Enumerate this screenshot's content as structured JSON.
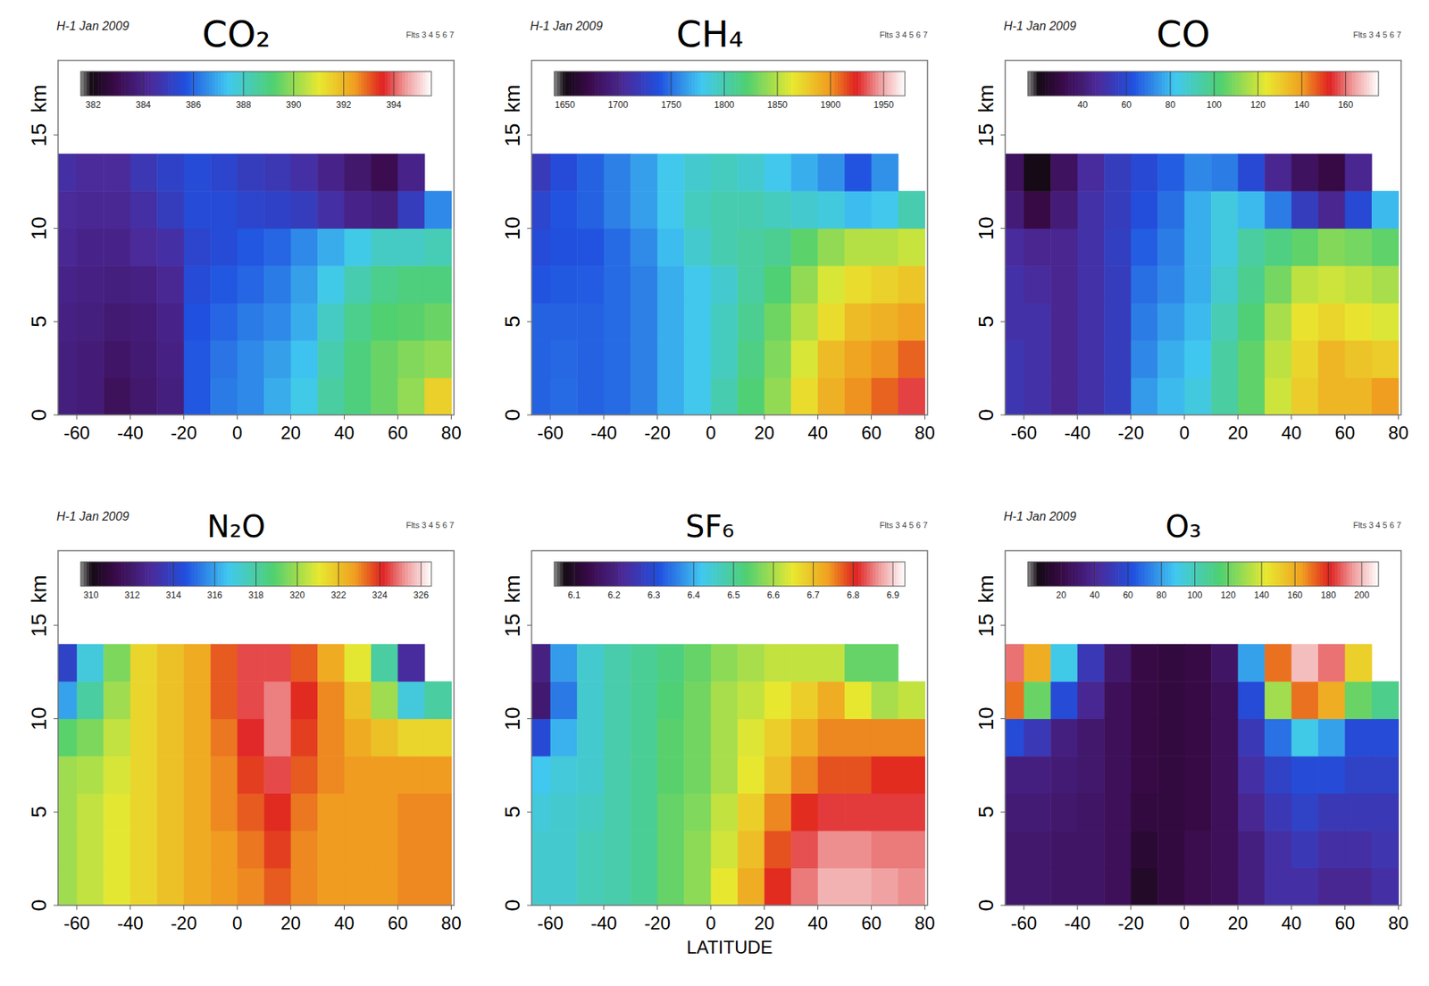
{
  "chart_data": [
    {
      "type": "heatmap",
      "title": "CO₂",
      "annotations": [
        "H-1 Jan 2009",
        "Flts 3 4 5 6 7"
      ],
      "ylabel": "km",
      "x": [
        -65,
        -55,
        -45,
        -35,
        -25,
        -15,
        -5,
        5,
        15,
        25,
        35,
        45,
        55,
        65,
        75
      ],
      "y": [
        1,
        3,
        5,
        7,
        9,
        11,
        13
      ],
      "xlim": [
        -67,
        81
      ],
      "xticks": [
        -60,
        -40,
        -20,
        0,
        20,
        40,
        60,
        80
      ],
      "ylim": [
        0,
        19
      ],
      "yticks": [
        0,
        5,
        10,
        15
      ],
      "colorbar": {
        "range": [
          381.5,
          395.5
        ],
        "ticks": [
          382,
          384,
          386,
          388,
          390,
          392,
          394
        ]
      },
      "cells": [
        [
          383.8,
          383.7,
          383.2,
          383.5,
          383.8,
          385.8,
          386.3,
          386.5,
          387.0,
          387.5,
          388.5,
          389.0,
          389.5,
          390.0,
          391.5
        ],
        [
          383.8,
          383.7,
          383.4,
          383.6,
          383.9,
          385.8,
          386.2,
          386.5,
          386.8,
          387.3,
          388.3,
          389.0,
          389.5,
          389.8,
          390.0
        ],
        [
          383.9,
          383.8,
          383.6,
          383.7,
          384.0,
          385.7,
          386.0,
          386.3,
          386.5,
          387.0,
          388.0,
          388.8,
          389.2,
          389.3,
          389.5
        ],
        [
          384.0,
          383.9,
          383.8,
          383.9,
          384.2,
          385.5,
          385.8,
          386.0,
          386.3,
          386.8,
          387.5,
          388.3,
          388.8,
          389.0,
          389.0
        ],
        [
          384.2,
          384.0,
          384.0,
          384.3,
          384.5,
          385.3,
          385.5,
          385.8,
          386.0,
          386.5,
          387.0,
          387.5,
          388.0,
          388.0,
          388.2
        ],
        [
          384.3,
          384.2,
          384.2,
          384.5,
          385.0,
          385.5,
          385.5,
          385.3,
          385.2,
          385.0,
          384.5,
          384.0,
          383.8,
          385.0,
          386.5
        ],
        [
          384.5,
          384.3,
          384.3,
          384.8,
          385.2,
          385.5,
          385.3,
          385.0,
          384.8,
          384.5,
          384.0,
          383.5,
          383.0,
          384.0,
          null
        ]
      ]
    },
    {
      "type": "heatmap",
      "title": "CH₄",
      "annotations": [
        "H-1 Jan 2009",
        "Flts 3 4 5 6 7"
      ],
      "ylabel": "km",
      "x": [
        -65,
        -55,
        -45,
        -35,
        -25,
        -15,
        -5,
        5,
        15,
        25,
        35,
        45,
        55,
        65,
        75
      ],
      "y": [
        1,
        3,
        5,
        7,
        9,
        11,
        13
      ],
      "xlim": [
        -67,
        81
      ],
      "xticks": [
        -60,
        -40,
        -20,
        0,
        20,
        40,
        60,
        80
      ],
      "ylim": [
        0,
        19
      ],
      "yticks": [
        0,
        5,
        10,
        15
      ],
      "colorbar": {
        "range": [
          1640,
          1970
        ],
        "ticks": [
          1650,
          1700,
          1750,
          1800,
          1850,
          1900,
          1950
        ]
      },
      "cells": [
        [
          1745,
          1748,
          1745,
          1748,
          1755,
          1770,
          1780,
          1800,
          1820,
          1840,
          1870,
          1890,
          1900,
          1910,
          1930
        ],
        [
          1745,
          1747,
          1745,
          1748,
          1755,
          1770,
          1780,
          1795,
          1815,
          1835,
          1860,
          1885,
          1895,
          1900,
          1910
        ],
        [
          1745,
          1745,
          1745,
          1748,
          1755,
          1770,
          1780,
          1795,
          1810,
          1830,
          1850,
          1870,
          1885,
          1890,
          1895
        ],
        [
          1740,
          1742,
          1743,
          1748,
          1755,
          1770,
          1780,
          1790,
          1805,
          1820,
          1840,
          1860,
          1870,
          1875,
          1880
        ],
        [
          1735,
          1738,
          1740,
          1748,
          1758,
          1775,
          1790,
          1800,
          1805,
          1810,
          1825,
          1840,
          1850,
          1850,
          1855
        ],
        [
          1730,
          1740,
          1745,
          1755,
          1765,
          1780,
          1795,
          1800,
          1800,
          1795,
          1790,
          1785,
          1775,
          1780,
          1800
        ],
        [
          1720,
          1735,
          1745,
          1755,
          1765,
          1780,
          1790,
          1795,
          1790,
          1780,
          1770,
          1760,
          1740,
          1760,
          null
        ]
      ]
    },
    {
      "type": "heatmap",
      "title": "CO",
      "annotations": [
        "H-1 Jan 2009",
        "Flts 3 4 5 6 7"
      ],
      "ylabel": "km",
      "x": [
        -65,
        -55,
        -45,
        -35,
        -25,
        -15,
        -5,
        5,
        15,
        25,
        35,
        45,
        55,
        65,
        75
      ],
      "y": [
        1,
        3,
        5,
        7,
        9,
        11,
        13
      ],
      "xlim": [
        -67,
        81
      ],
      "xticks": [
        -60,
        -40,
        -20,
        0,
        20,
        40,
        60,
        80
      ],
      "ylim": [
        0,
        19
      ],
      "yticks": [
        0,
        5,
        10,
        15
      ],
      "colorbar": {
        "range": [
          15,
          175
        ],
        "ticks": [
          40,
          60,
          80,
          100,
          120,
          140,
          160
        ]
      },
      "cells": [
        [
          52,
          50,
          45,
          50,
          55,
          75,
          80,
          85,
          95,
          105,
          120,
          130,
          135,
          135,
          140
        ],
        [
          52,
          50,
          45,
          50,
          55,
          72,
          78,
          82,
          95,
          105,
          118,
          128,
          135,
          132,
          130
        ],
        [
          50,
          50,
          45,
          50,
          55,
          70,
          75,
          80,
          92,
          102,
          115,
          125,
          128,
          125,
          122
        ],
        [
          50,
          48,
          45,
          50,
          55,
          68,
          72,
          78,
          88,
          98,
          108,
          118,
          120,
          118,
          115
        ],
        [
          48,
          45,
          45,
          50,
          56,
          65,
          70,
          78,
          85,
          95,
          100,
          105,
          110,
          108,
          105
        ],
        [
          40,
          30,
          40,
          50,
          55,
          62,
          68,
          78,
          85,
          80,
          70,
          55,
          45,
          60,
          80
        ],
        [
          35,
          20,
          35,
          48,
          55,
          60,
          65,
          72,
          70,
          60,
          45,
          35,
          30,
          45,
          null
        ]
      ]
    },
    {
      "type": "heatmap",
      "title": "N₂O",
      "annotations": [
        "H-1 Jan 2009",
        "Flts 3 4 5 6 7"
      ],
      "ylabel": "km",
      "x": [
        -65,
        -55,
        -45,
        -35,
        -25,
        -15,
        -5,
        5,
        15,
        25,
        35,
        45,
        55,
        65,
        75
      ],
      "y": [
        1,
        3,
        5,
        7,
        9,
        11,
        13
      ],
      "xlim": [
        -67,
        81
      ],
      "xticks": [
        -60,
        -40,
        -20,
        0,
        20,
        40,
        60,
        80
      ],
      "ylim": [
        0,
        19
      ],
      "yticks": [
        0,
        5,
        10,
        15
      ],
      "colorbar": {
        "range": [
          309.5,
          326.5
        ],
        "ticks": [
          310,
          312,
          314,
          316,
          318,
          320,
          322,
          324,
          326
        ]
      },
      "cells": [
        [
          320.0,
          320.5,
          321.0,
          321.5,
          322.0,
          322.5,
          322.8,
          323.0,
          323.5,
          323.0,
          322.8,
          322.8,
          322.8,
          323.0,
          323.0
        ],
        [
          320.0,
          320.5,
          321.0,
          321.5,
          322.0,
          322.5,
          322.8,
          323.2,
          323.8,
          323.0,
          322.8,
          322.8,
          322.8,
          323.0,
          323.0
        ],
        [
          320.0,
          320.5,
          321.0,
          321.5,
          322.0,
          322.5,
          323.0,
          323.5,
          324.0,
          323.2,
          322.8,
          322.8,
          322.8,
          323.0,
          323.0
        ],
        [
          320.0,
          320.2,
          320.8,
          321.5,
          322.0,
          322.5,
          323.0,
          323.8,
          324.5,
          323.5,
          323.0,
          322.8,
          322.8,
          322.8,
          322.8
        ],
        [
          319.0,
          319.5,
          320.5,
          321.5,
          322.0,
          322.5,
          323.2,
          324.2,
          325.0,
          323.8,
          323.0,
          322.5,
          322.0,
          321.5,
          321.5
        ],
        [
          316.0,
          318.0,
          320.0,
          321.5,
          322.0,
          322.5,
          323.5,
          324.5,
          325.0,
          324.0,
          323.0,
          322.0,
          320.0,
          317.0,
          318.0
        ],
        [
          314.0,
          317.0,
          319.5,
          321.5,
          322.0,
          322.5,
          323.5,
          324.5,
          324.5,
          323.5,
          322.5,
          321.0,
          318.0,
          313.0,
          null
        ]
      ]
    },
    {
      "type": "heatmap",
      "title": "SF₆",
      "annotations": [
        "Flts 3 4 5 6 7"
      ],
      "ylabel": "km",
      "xlabel": "LATITUDE",
      "x": [
        -65,
        -55,
        -45,
        -35,
        -25,
        -15,
        -5,
        5,
        15,
        25,
        35,
        45,
        55,
        65,
        75
      ],
      "y": [
        1,
        3,
        5,
        7,
        9,
        11,
        13
      ],
      "xlim": [
        -67,
        81
      ],
      "xticks": [
        -60,
        -40,
        -20,
        0,
        20,
        40,
        60,
        80
      ],
      "ylim": [
        0,
        19
      ],
      "yticks": [
        0,
        5,
        10,
        15
      ],
      "colorbar": {
        "range": [
          6.05,
          6.93
        ],
        "ticks": [
          6.1,
          6.2,
          6.3,
          6.4,
          6.5,
          6.6,
          6.7,
          6.8,
          6.9
        ]
      },
      "cells": [
        [
          6.45,
          6.45,
          6.47,
          6.48,
          6.5,
          6.55,
          6.58,
          6.65,
          6.72,
          6.8,
          6.85,
          6.88,
          6.88,
          6.87,
          6.86
        ],
        [
          6.45,
          6.45,
          6.47,
          6.48,
          6.5,
          6.55,
          6.58,
          6.63,
          6.7,
          6.78,
          6.83,
          6.86,
          6.86,
          6.85,
          6.85
        ],
        [
          6.44,
          6.45,
          6.46,
          6.48,
          6.5,
          6.55,
          6.57,
          6.62,
          6.68,
          6.75,
          6.8,
          6.82,
          6.82,
          6.82,
          6.82
        ],
        [
          6.42,
          6.44,
          6.45,
          6.48,
          6.5,
          6.54,
          6.56,
          6.6,
          6.65,
          6.7,
          6.75,
          6.78,
          6.78,
          6.8,
          6.8
        ],
        [
          6.3,
          6.4,
          6.45,
          6.48,
          6.5,
          6.54,
          6.56,
          6.6,
          6.64,
          6.68,
          6.72,
          6.75,
          6.75,
          6.75,
          6.75
        ],
        [
          6.18,
          6.35,
          6.45,
          6.48,
          6.5,
          6.53,
          6.56,
          6.6,
          6.62,
          6.65,
          6.68,
          6.72,
          6.65,
          6.6,
          6.62
        ],
        [
          6.2,
          6.38,
          6.45,
          6.48,
          6.5,
          6.52,
          6.55,
          6.58,
          6.6,
          6.62,
          6.62,
          6.62,
          6.55,
          6.55,
          null
        ]
      ]
    },
    {
      "type": "heatmap",
      "title": "O₃",
      "annotations": [
        "H-1 Jan 2009",
        "Flts 3 4 5 6 7"
      ],
      "ylabel": "km",
      "x": [
        -65,
        -55,
        -45,
        -35,
        -25,
        -15,
        -5,
        5,
        15,
        25,
        35,
        45,
        55,
        65,
        75
      ],
      "y": [
        1,
        3,
        5,
        7,
        9,
        11,
        13
      ],
      "xlim": [
        -67,
        81
      ],
      "xticks": [
        -60,
        -40,
        -20,
        0,
        20,
        40,
        60,
        80
      ],
      "ylim": [
        0,
        19
      ],
      "yticks": [
        0,
        5,
        10,
        15
      ],
      "colorbar": {
        "range": [
          0,
          210
        ],
        "ticks": [
          20,
          40,
          60,
          80,
          100,
          120,
          140,
          160,
          180,
          200
        ]
      },
      "cells": [
        [
          30,
          30,
          28,
          28,
          25,
          12,
          18,
          22,
          25,
          35,
          45,
          45,
          40,
          40,
          45
        ],
        [
          30,
          30,
          28,
          28,
          25,
          15,
          18,
          22,
          25,
          35,
          45,
          50,
          45,
          45,
          48
        ],
        [
          32,
          32,
          30,
          28,
          25,
          18,
          18,
          20,
          25,
          40,
          50,
          55,
          50,
          50,
          50
        ],
        [
          35,
          35,
          32,
          30,
          25,
          20,
          18,
          20,
          25,
          45,
          55,
          60,
          60,
          55,
          55
        ],
        [
          60,
          50,
          35,
          30,
          25,
          20,
          18,
          20,
          25,
          50,
          70,
          90,
          80,
          60,
          60
        ],
        [
          170,
          120,
          60,
          40,
          25,
          20,
          18,
          20,
          25,
          60,
          130,
          170,
          160,
          120,
          110
        ],
        [
          190,
          160,
          90,
          50,
          30,
          20,
          18,
          20,
          28,
          80,
          170,
          200,
          190,
          150,
          null
        ]
      ]
    }
  ]
}
